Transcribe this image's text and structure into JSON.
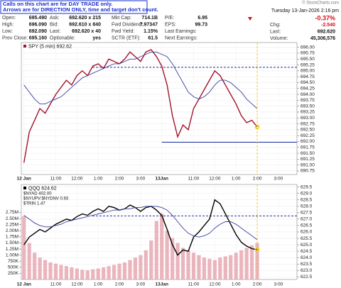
{
  "header": {
    "note": [
      "Calls on this chart are for DAY TRADE only.",
      "Arrows are for DIRECTION ONLY, time and target don't count."
    ],
    "quote": [
      [
        [
          "Open:",
          "695.490"
        ],
        [
          "Ask:",
          "692.620 x 215"
        ],
        [
          "Mkt Cap:",
          "714.1B"
        ],
        [
          "P/E:",
          "6.95"
        ]
      ],
      [
        [
          "High:",
          "696.090"
        ],
        [
          "Bid:",
          "692.610 x 840"
        ],
        [
          "Fwd Dividend:",
          "7.97347"
        ],
        [
          "EPS:",
          "99.73"
        ]
      ],
      [
        [
          "Low:",
          "692.090"
        ],
        [
          "Last:",
          "692.620 x 40"
        ],
        [
          "Fwd Yield:",
          "1.15%"
        ],
        [
          "Last Earnings:",
          ""
        ]
      ],
      [
        [
          "Prev Close:",
          "695.160"
        ],
        [
          "Optionable:",
          "yes"
        ],
        [
          "SCTR (ETF):",
          "61.5"
        ],
        [
          "Next Earnings:",
          ""
        ]
      ]
    ],
    "watermark": "© StockCharts.com",
    "date": "Tuesday 13-Jan-2026  2:16 pm",
    "change_pct": "-0.37%",
    "stats": [
      [
        "Chg:",
        "-2.540"
      ],
      [
        "Last:",
        "692.620"
      ],
      [
        "Volume:",
        "45,306,576"
      ]
    ]
  },
  "chart_data": [
    {
      "type": "line",
      "categories": [
        "12 Jan",
        null,
        null,
        null,
        null,
        null,
        "11:00",
        null,
        null,
        null,
        "12:00",
        null,
        null,
        null,
        "1:00",
        null,
        null,
        null,
        "2:00",
        null,
        null,
        null,
        "3:00",
        null,
        null,
        null,
        "13Jan",
        null,
        null,
        null,
        null,
        null,
        "11:00",
        null,
        null,
        null,
        "12:00",
        null,
        null,
        null,
        "1:00",
        null,
        null,
        null,
        "2:00",
        null,
        null,
        null,
        "3:00",
        null,
        null,
        null
      ],
      "series": [
        {
          "name": "SPY (5 min) 692.62",
          "color": "#a3122a",
          "values": [
            691.1,
            692.4,
            692.9,
            693.4,
            693.2,
            693.6,
            694.0,
            694.3,
            694.6,
            694.4,
            694.8,
            695.0,
            694.8,
            695.2,
            695.3,
            695.1,
            695.5,
            695.4,
            695.3,
            695.5,
            695.8,
            695.6,
            695.4,
            695.8,
            695.9,
            695.6,
            695.2,
            694.4,
            693.1,
            692.2,
            692.7,
            692.5,
            693.4,
            693.8,
            694.2,
            694.6,
            695.0,
            694.8,
            694.4,
            694.0,
            693.6,
            693.1,
            692.8,
            692.9,
            692.62,
            null,
            null,
            null,
            null,
            null,
            null,
            null
          ]
        },
        {
          "color": "#3a3fa0",
          "values": [
            694.4,
            694.1,
            693.8,
            693.6,
            693.6,
            693.7,
            693.8,
            693.9,
            694.1,
            694.3,
            694.5,
            694.7,
            694.8,
            694.9,
            695.0,
            695.1,
            695.2,
            695.3,
            695.3,
            695.4,
            695.5,
            695.5,
            695.6,
            695.7,
            695.8,
            695.8,
            695.7,
            695.6,
            695.3,
            694.9,
            694.5,
            694.1,
            693.9,
            693.8,
            693.9,
            694.1,
            694.4,
            694.6,
            694.6,
            694.5,
            694.3,
            694.1,
            693.8,
            693.6,
            693.4,
            null,
            null,
            null,
            null,
            null,
            null,
            null
          ]
        }
      ],
      "ylim": [
        690.6,
        696.2
      ],
      "yticks": [
        {
          "value": 696,
          "label": "696.00"
        },
        695.75,
        {
          "value": 695.5,
          "label": "695.50"
        },
        695.25,
        {
          "value": 695,
          "label": "695.00"
        },
        694.75,
        {
          "value": 694.5,
          "label": "694.50"
        },
        694.25,
        {
          "value": 694,
          "label": "694.00"
        },
        693.75,
        {
          "value": 693.5,
          "label": "693.50"
        },
        693.25,
        {
          "value": 693,
          "label": "693.00"
        },
        692.75,
        {
          "value": 692.5,
          "label": "692.50"
        },
        692.25,
        {
          "value": 692,
          "label": "692.00"
        },
        691.75,
        {
          "value": 691.5,
          "label": "691.50"
        },
        691.25,
        {
          "value": 691,
          "label": "691.00"
        },
        690.75
      ],
      "hlines": [
        {
          "value": 695.15,
          "color": "#1f2f9f",
          "dashed": true
        },
        {
          "value": 691.97,
          "color": "#1f2f9f",
          "dashed": false
        }
      ],
      "grid": true
    },
    {
      "type": "line",
      "categories": [
        "12 Jan",
        null,
        null,
        null,
        null,
        null,
        "11:00",
        null,
        null,
        null,
        "12:00",
        null,
        null,
        null,
        "1:00",
        null,
        null,
        null,
        "2:00",
        null,
        null,
        null,
        "3:00",
        null,
        null,
        null,
        "13Jan",
        null,
        null,
        null,
        null,
        null,
        "11:00",
        null,
        null,
        null,
        "12:00",
        null,
        null,
        null,
        "1:00",
        null,
        null,
        null,
        "2:00",
        null,
        null,
        null,
        "3:00",
        null,
        null,
        null
      ],
      "series": [
        {
          "name": "QQQ 624.62",
          "color": "#000000",
          "values": [
            625.0,
            625.6,
            625.9,
            626.2,
            626.0,
            626.3,
            626.6,
            626.8,
            627.0,
            626.9,
            627.2,
            627.4,
            627.3,
            627.6,
            627.8,
            627.6,
            628.0,
            627.9,
            627.7,
            627.8,
            628.1,
            627.9,
            627.6,
            627.9,
            628.0,
            627.7,
            627.3,
            626.2,
            625.0,
            624.2,
            624.6,
            624.5,
            625.6,
            626.0,
            626.5,
            627.0,
            628.5,
            628.2,
            627.4,
            626.6,
            625.8,
            625.2,
            624.9,
            624.7,
            624.62,
            null,
            null,
            null,
            null,
            null,
            null,
            null
          ]
        },
        {
          "color": "#3a3fa0",
          "values": [
            627.3,
            627.0,
            626.7,
            626.5,
            626.4,
            626.4,
            626.5,
            626.6,
            626.8,
            626.9,
            627.0,
            627.1,
            627.2,
            627.3,
            627.4,
            627.5,
            627.6,
            627.7,
            627.7,
            627.8,
            627.8,
            627.9,
            627.9,
            628.0,
            628.0,
            628.0,
            627.9,
            627.7,
            627.3,
            626.8,
            626.3,
            625.9,
            625.7,
            625.6,
            625.7,
            625.9,
            626.3,
            626.6,
            626.8,
            626.8,
            626.6,
            626.3,
            626.0,
            625.7,
            625.4,
            null,
            null,
            null,
            null,
            null,
            null,
            null
          ]
        }
      ],
      "annotations": [
        "$NYAD 402.00",
        "$NYUPV:$NYDNV 0.93",
        "$TRIN 1.47"
      ],
      "ylim": [
        622.3,
        629.7
      ],
      "yticks": [
        629.5,
        {
          "value": 629,
          "label": "629.0"
        },
        628.5,
        {
          "value": 628,
          "label": "628.0"
        },
        627.5,
        {
          "value": 627,
          "label": "627.0"
        },
        626.5,
        {
          "value": 626,
          "label": "626.0"
        },
        625.5,
        {
          "value": 625,
          "label": "625.0"
        },
        624.5,
        {
          "value": 624,
          "label": "624.0"
        },
        623.5,
        {
          "value": 623,
          "label": "623.0"
        },
        622.5
      ],
      "hlines": [
        {
          "value": 627.25,
          "color": "#1f2f9f",
          "dashed": true
        }
      ],
      "volume": {
        "color": "#e6a3ad",
        "values": [
          2600000,
          1500000,
          1100000,
          900000,
          800000,
          700000,
          650000,
          600000,
          550000,
          500000,
          450000,
          400000,
          380000,
          420000,
          450000,
          500000,
          550000,
          600000,
          650000,
          700000,
          800000,
          900000,
          1000000,
          1200000,
          1600000,
          2400000,
          2700000,
          2000000,
          1700000,
          1500000,
          1300000,
          1200000,
          1100000,
          1000000,
          900000,
          850000,
          800000,
          900000,
          950000,
          1000000,
          1100000,
          1200000,
          1300000,
          1400000,
          1500000,
          null,
          null,
          null,
          null,
          null,
          null,
          null
        ],
        "ylim": [
          0,
          3900000
        ],
        "yticks": [
          {
            "value": 2750000,
            "label": "2.75M"
          },
          {
            "value": 2500000,
            "label": "2.50M"
          },
          {
            "value": 2250000,
            "label": "2.25M"
          },
          {
            "value": 2000000,
            "label": "2.00M"
          },
          {
            "value": 1750000,
            "label": "1.75M"
          },
          {
            "value": 1500000,
            "label": "1.50M"
          },
          {
            "value": 1250000,
            "label": "1.25M"
          },
          {
            "value": 1000000,
            "label": "1.00M"
          },
          {
            "value": 750000,
            "label": "750K"
          },
          {
            "value": 500000,
            "label": "500K"
          },
          {
            "value": 250000,
            "label": "250K"
          }
        ]
      },
      "grid": true
    }
  ]
}
